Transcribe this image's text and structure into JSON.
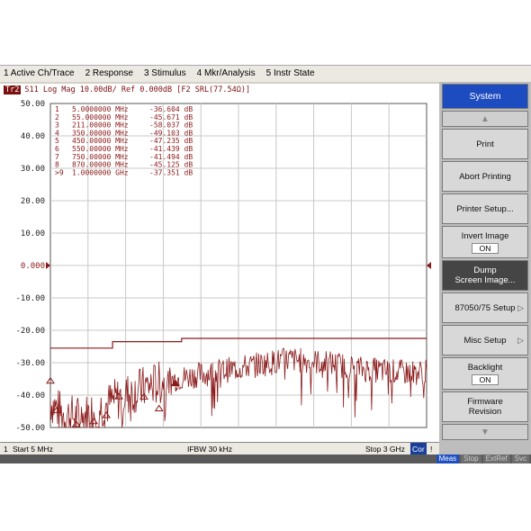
{
  "menubar": {
    "items": [
      "1 Active Ch/Trace",
      "2 Response",
      "3 Stimulus",
      "4 Mkr/Analysis",
      "5 Instr State"
    ]
  },
  "trace": {
    "header_box": "Tr2",
    "header_text": "S11 Log Mag 10.00dB/ Ref 0.000dB [F2 SRL(77.54Ω)]",
    "color": "#8b1a1a"
  },
  "axis": {
    "y_ticks": [
      "50.00",
      "40.00",
      "30.00",
      "20.00",
      "10.00",
      "0.000",
      "-10.00",
      "-20.00",
      "-30.00",
      "-40.00",
      "-50.00"
    ],
    "ref_level_label": "0.000"
  },
  "markers": [
    {
      "num": "1",
      "freq": "5.0000000 MHz",
      "val": "-36.604 dB"
    },
    {
      "num": "2",
      "freq": "55.000000 MHz",
      "val": "-45.671 dB"
    },
    {
      "num": "3",
      "freq": "211.00000 MHz",
      "val": "-58.037 dB"
    },
    {
      "num": "4",
      "freq": "350.00000 MHz",
      "val": "-49.103 dB"
    },
    {
      "num": "5",
      "freq": "450.00000 MHz",
      "val": "-47.235 dB"
    },
    {
      "num": "6",
      "freq": "550.00000 MHz",
      "val": "-41.439 dB"
    },
    {
      "num": "7",
      "freq": "750.00000 MHz",
      "val": "-41.494 dB"
    },
    {
      "num": "8",
      "freq": "870.00000 MHz",
      "val": "-45.125 dB"
    },
    {
      "num": ">9",
      "freq": "1.0000000 GHz",
      "val": "-37.351 dB"
    }
  ],
  "status": {
    "channel": "1",
    "start": "Start 5 MHz",
    "ifbw": "IFBW 30 kHz",
    "stop": "Stop 3 GHz",
    "cor": "Cor",
    "end": "!"
  },
  "bottom_tabs": [
    "Meas",
    "Stop",
    "ExtRef",
    "Svc"
  ],
  "softkeys": {
    "title": "System",
    "print": "Print",
    "abort_printing": "Abort Printing",
    "printer_setup": "Printer Setup...",
    "invert_image": "Invert Image",
    "invert_image_value": "ON",
    "dump_screen_1": "Dump",
    "dump_screen_2": "Screen Image...",
    "setup_8705": "87050/75 Setup",
    "misc_setup": "Misc Setup",
    "backlight": "Backlight",
    "backlight_value": "ON",
    "firmware_1": "Firmware",
    "firmware_2": "Revision"
  },
  "chart_data": {
    "type": "line",
    "x_start_mhz": 5,
    "x_stop_mhz": 3000,
    "ylim": [
      -50,
      50
    ],
    "y_unit": "dB",
    "limit_line": [
      {
        "x": [
          5,
          500
        ],
        "y": -25.5
      },
      {
        "x": [
          500,
          1050
        ],
        "y": -23.5
      },
      {
        "x": [
          1050,
          3000
        ],
        "y": -22.5
      }
    ],
    "trace_envelope": [
      {
        "x": 5,
        "y": -42
      },
      {
        "x": 100,
        "y": -46
      },
      {
        "x": 250,
        "y": -47
      },
      {
        "x": 400,
        "y": -44
      },
      {
        "x": 600,
        "y": -40
      },
      {
        "x": 800,
        "y": -37
      },
      {
        "x": 1000,
        "y": -35
      },
      {
        "x": 1300,
        "y": -33
      },
      {
        "x": 1600,
        "y": -31
      },
      {
        "x": 1900,
        "y": -29
      },
      {
        "x": 2200,
        "y": -30
      },
      {
        "x": 2500,
        "y": -32
      },
      {
        "x": 2800,
        "y": -33
      },
      {
        "x": 3000,
        "y": -33
      }
    ],
    "marker_points": [
      {
        "num": "1",
        "x": 5,
        "y": -36.604
      },
      {
        "num": "2",
        "x": 55,
        "y": -45.671
      },
      {
        "num": "3",
        "x": 211,
        "y": -58.037
      },
      {
        "num": "4",
        "x": 350,
        "y": -49.103
      },
      {
        "num": "5",
        "x": 450,
        "y": -47.235
      },
      {
        "num": "6",
        "x": 550,
        "y": -41.439
      },
      {
        "num": "7",
        "x": 750,
        "y": -41.494
      },
      {
        "num": "8",
        "x": 870,
        "y": -45.125
      },
      {
        "num": "9",
        "x": 1000,
        "y": -37.351
      }
    ]
  }
}
